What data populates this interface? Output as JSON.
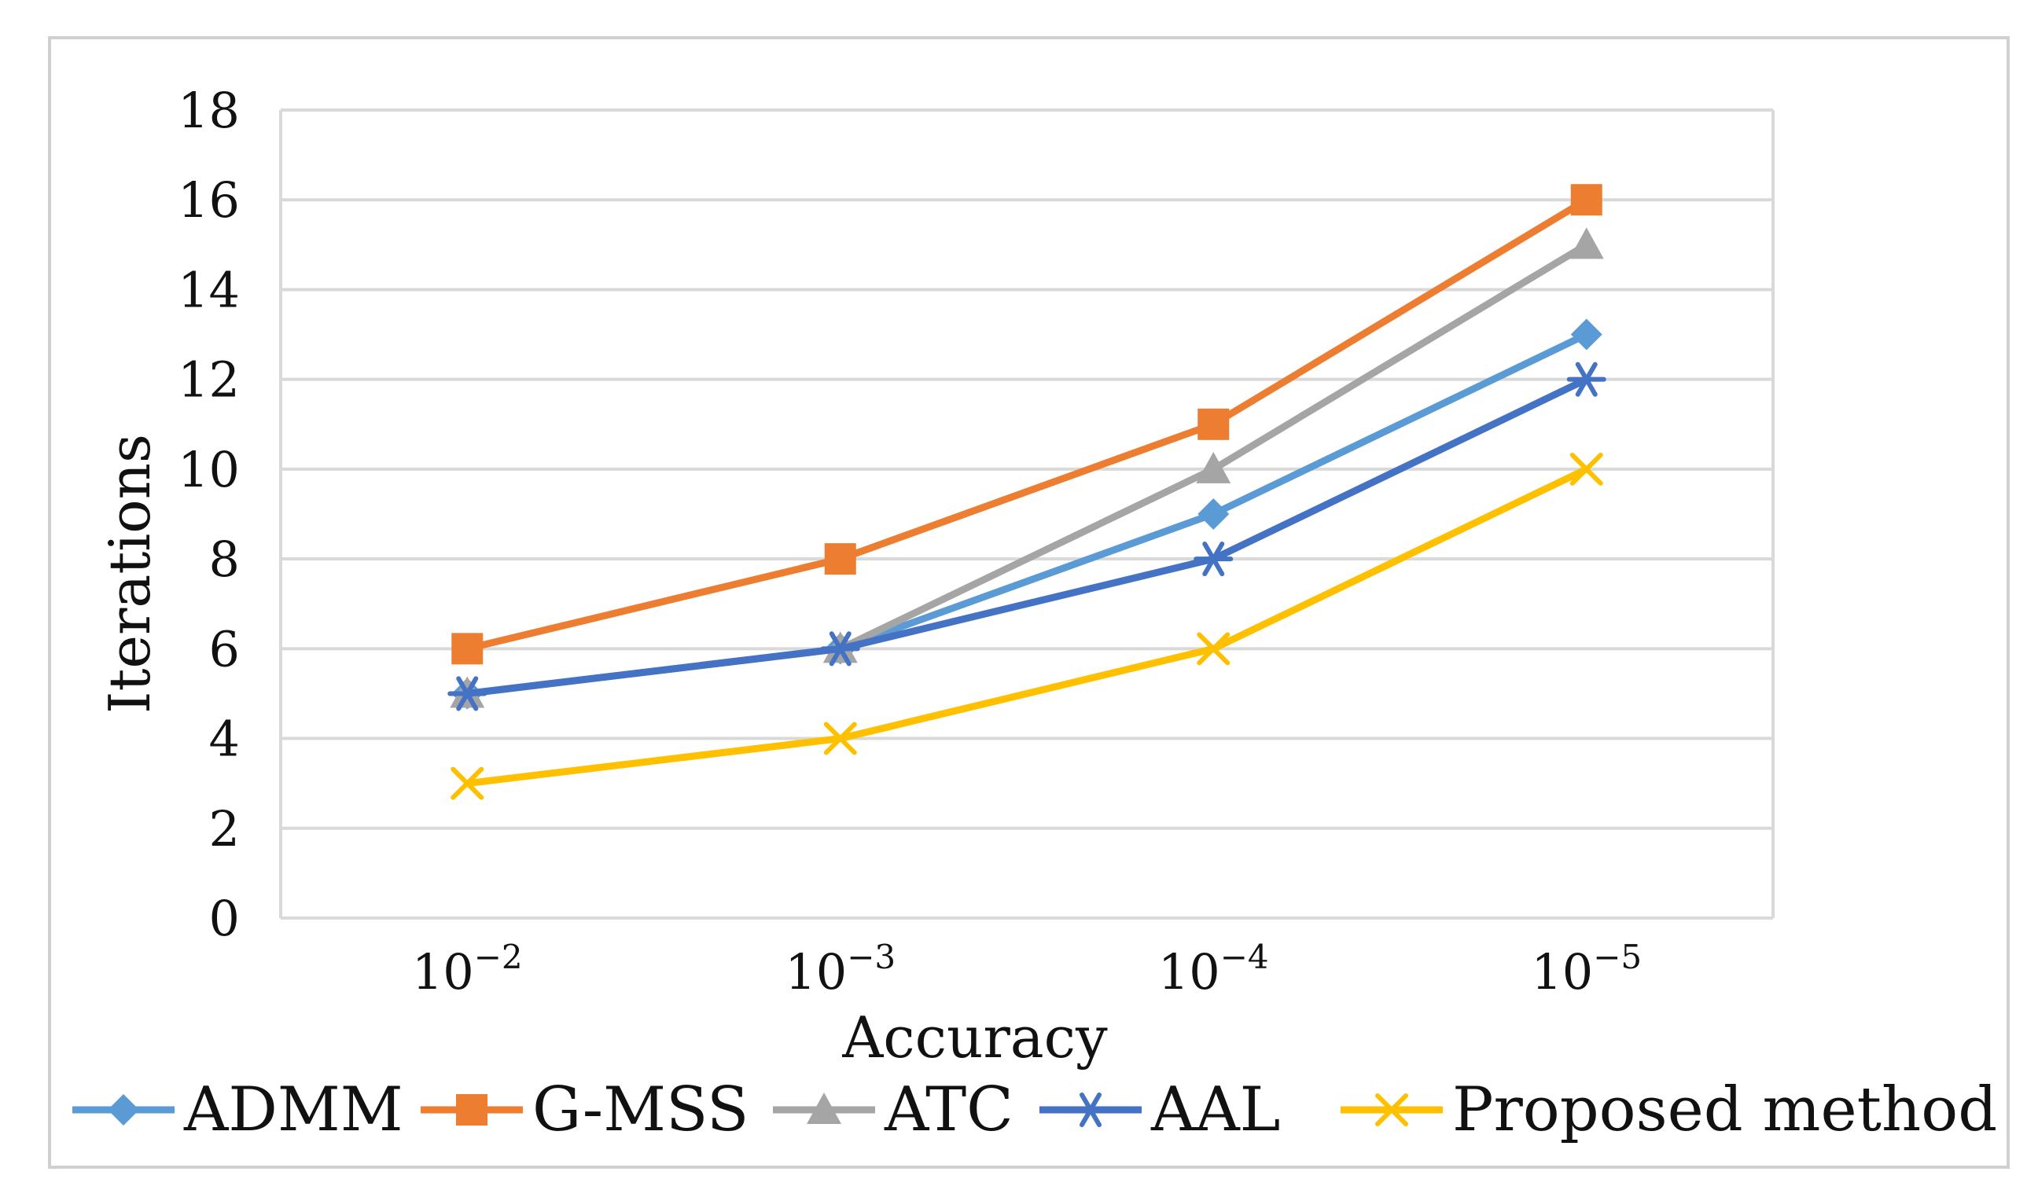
{
  "chart_data": {
    "type": "line",
    "title": "",
    "xlabel": "Accuracy",
    "ylabel": "Iterations",
    "categories": [
      {
        "base": "10",
        "exp": "−2"
      },
      {
        "base": "10",
        "exp": "−3"
      },
      {
        "base": "10",
        "exp": "−4"
      },
      {
        "base": "10",
        "exp": "−5"
      }
    ],
    "ylim": [
      0,
      18
    ],
    "yticks": [
      0,
      2,
      4,
      6,
      8,
      10,
      12,
      14,
      16,
      18
    ],
    "grid": true,
    "legend_position": "bottom",
    "series": [
      {
        "name": "ADMM",
        "values": [
          5,
          6,
          9,
          13
        ],
        "color": "#5b9bd5",
        "marker": "diamond"
      },
      {
        "name": "G-MSS",
        "values": [
          6,
          8,
          11,
          16
        ],
        "color": "#ed7d31",
        "marker": "square"
      },
      {
        "name": "ATC",
        "values": [
          5,
          6,
          10,
          15
        ],
        "color": "#a5a5a5",
        "marker": "triangle"
      },
      {
        "name": "AAL",
        "values": [
          5,
          6,
          8,
          12
        ],
        "color": "#4472c4",
        "marker": "asterisk"
      },
      {
        "name": "Proposed method",
        "values": [
          3,
          4,
          6,
          10
        ],
        "color": "#ffc000",
        "marker": "x"
      }
    ]
  }
}
